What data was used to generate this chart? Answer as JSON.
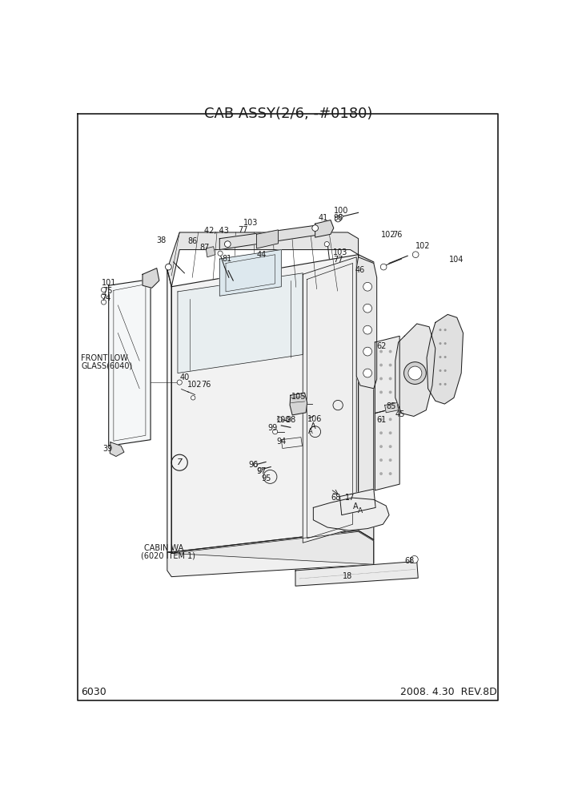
{
  "title": "CAB ASSY(2/6, -#0180)",
  "page_num": "6030",
  "date_rev": "2008. 4.30  REV.8D",
  "bg_color": "#ffffff",
  "lc": "#1a1a1a",
  "title_fontsize": 13,
  "label_fontsize": 7,
  "footer_fontsize": 9
}
